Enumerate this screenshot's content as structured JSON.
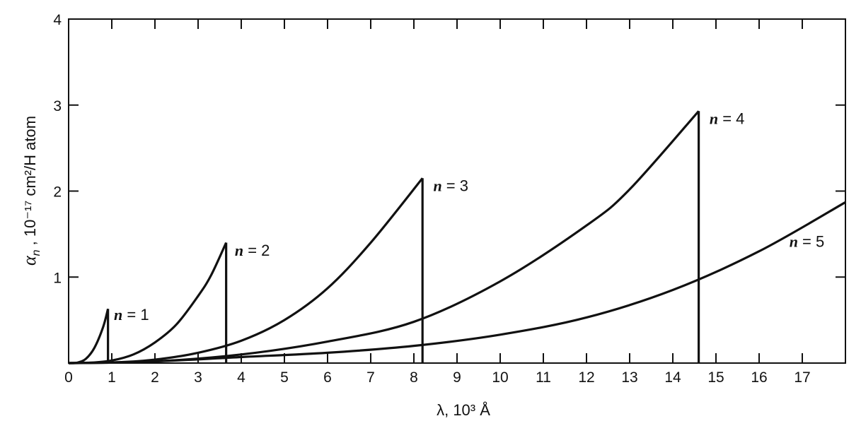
{
  "chart_data": {
    "type": "line",
    "title": "",
    "xlabel": "λ, 10³ Å",
    "ylabel": "α_n ,  10⁻¹⁷ cm²/H atom",
    "xlim": [
      0,
      18
    ],
    "ylim": [
      0,
      4
    ],
    "x_ticks": [
      0,
      1,
      2,
      3,
      4,
      5,
      6,
      7,
      8,
      9,
      10,
      11,
      12,
      13,
      14,
      15,
      16,
      17
    ],
    "y_ticks": [
      1,
      2,
      3,
      4
    ],
    "grid": false,
    "series": [
      {
        "label_var": "n",
        "label_eq": " = ",
        "label_val": "1",
        "edge": 0.912,
        "peak": 0.63,
        "x": [
          0,
          0.2,
          0.4,
          0.6,
          0.8,
          0.912
        ],
        "y": [
          0,
          0.005,
          0.05,
          0.18,
          0.42,
          0.63
        ]
      },
      {
        "label_var": "n",
        "label_eq": " = ",
        "label_val": "2",
        "edge": 3.65,
        "peak": 1.4,
        "x": [
          0,
          0.5,
          1,
          1.5,
          2,
          2.5,
          3,
          3.3,
          3.65
        ],
        "y": [
          0,
          0.004,
          0.03,
          0.1,
          0.24,
          0.45,
          0.78,
          1.02,
          1.4
        ]
      },
      {
        "label_var": "n",
        "label_eq": " = ",
        "label_val": "3",
        "edge": 8.2,
        "peak": 2.15,
        "x": [
          0,
          1,
          2,
          3,
          4,
          5,
          6,
          7,
          8.2
        ],
        "y": [
          0,
          0.006,
          0.04,
          0.12,
          0.26,
          0.5,
          0.87,
          1.4,
          2.15
        ]
      },
      {
        "label_var": "n",
        "label_eq": " = ",
        "label_val": "4",
        "edge": 14.6,
        "peak": 2.93,
        "x": [
          0,
          2,
          4,
          6,
          8,
          10,
          12,
          13,
          14.6
        ],
        "y": [
          0,
          0.02,
          0.1,
          0.25,
          0.48,
          0.95,
          1.6,
          2.02,
          2.93
        ]
      },
      {
        "label_var": "n",
        "label_eq": " = ",
        "label_val": "5",
        "edge": null,
        "peak": null,
        "x": [
          0,
          2,
          4,
          6,
          8,
          10,
          12,
          14,
          16,
          18
        ],
        "y": [
          0,
          0.02,
          0.07,
          0.12,
          0.2,
          0.33,
          0.53,
          0.85,
          1.3,
          1.87
        ]
      }
    ]
  }
}
